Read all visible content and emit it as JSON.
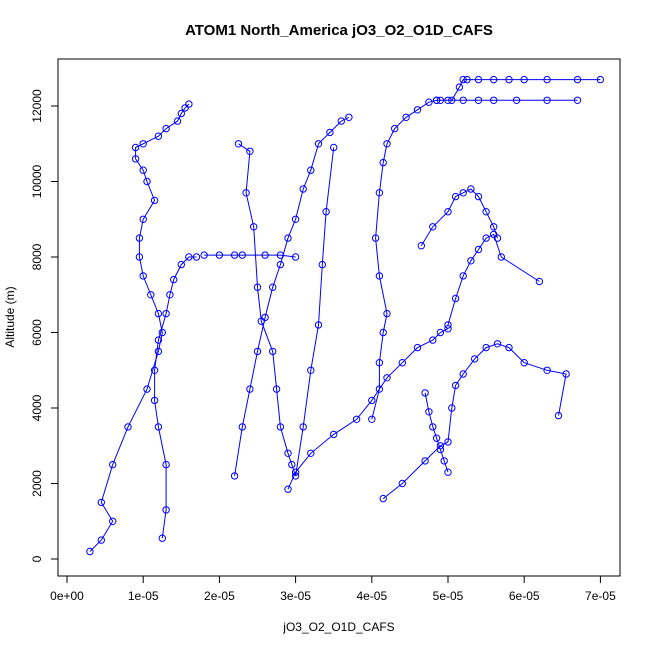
{
  "chart_data": {
    "type": "line",
    "title": "ATOM1 North_America jO3_O2_O1D_CAFS",
    "xlabel": "jO3_O2_O1D_CAFS",
    "ylabel": "Altitude (m)",
    "xlim": [
      0,
      7e-05
    ],
    "ylim": [
      0,
      12500
    ],
    "x_ticks": [
      0,
      1e-05,
      2e-05,
      3e-05,
      4e-05,
      5e-05,
      6e-05,
      7e-05
    ],
    "x_tick_labels": [
      "0e+00",
      "1e-05",
      "2e-05",
      "3e-05",
      "4e-05",
      "5e-05",
      "6e-05",
      "7e-05"
    ],
    "y_ticks": [
      0,
      2000,
      4000,
      6000,
      8000,
      10000,
      12000
    ],
    "y_tick_labels": [
      "0",
      "2000",
      "4000",
      "6000",
      "8000",
      "10000",
      "12000"
    ],
    "color": "#0000ff",
    "legend": "none",
    "grid": false,
    "series": [
      {
        "x": [
          3e-06,
          4.5e-06,
          6e-06,
          4.5e-06,
          6e-06,
          8e-06,
          1.05e-05,
          1.2e-05,
          1.25e-05,
          1.2e-05,
          1.1e-05,
          1e-05,
          9.5e-06,
          9.5e-06,
          1e-05,
          1.15e-05,
          1.05e-05,
          1e-05,
          9e-06,
          9e-06,
          1e-05,
          1.2e-05,
          1.3e-05,
          1.45e-05,
          1.5e-05,
          1.55e-05,
          1.6e-05
        ],
        "y": [
          200,
          500,
          1000,
          1500,
          2500,
          3500,
          4500,
          5500,
          6000,
          6500,
          7000,
          7500,
          8000,
          8500,
          9000,
          9500,
          10000,
          10300,
          10600,
          10900,
          11000,
          11200,
          11400,
          11600,
          11800,
          11950,
          12050
        ]
      },
      {
        "x": [
          1.25e-05,
          1.3e-05,
          1.3e-05,
          1.2e-05,
          1.15e-05,
          1.15e-05,
          1.2e-05,
          1.3e-05,
          1.35e-05,
          1.4e-05,
          1.5e-05,
          1.6e-05,
          1.7e-05
        ],
        "y": [
          550,
          1300,
          2500,
          3500,
          4200,
          5000,
          5800,
          6500,
          7000,
          7400,
          7800,
          8000,
          8000
        ]
      },
      {
        "x": [
          1.8e-05,
          2e-05,
          2.2e-05,
          2.3e-05,
          2.6e-05,
          2.8e-05,
          3e-05
        ],
        "y": [
          8050,
          8050,
          8050,
          8050,
          8050,
          8050,
          8000
        ]
      },
      {
        "x": [
          2.25e-05,
          2.4e-05,
          2.35e-05,
          2.45e-05,
          2.5e-05,
          2.55e-05,
          2.7e-05,
          2.75e-05,
          2.8e-05,
          2.9e-05,
          2.95e-05,
          3e-05,
          3.1e-05,
          3.2e-05,
          3.3e-05,
          3.35e-05,
          3.4e-05,
          3.5e-05
        ],
        "y": [
          11000,
          10800,
          9700,
          8800,
          7200,
          6300,
          5500,
          4500,
          3500,
          2800,
          2500,
          2200,
          3500,
          5000,
          6200,
          7800,
          9200,
          10900
        ]
      },
      {
        "x": [
          2.2e-05,
          2.3e-05,
          2.4e-05,
          2.5e-05,
          2.6e-05,
          2.7e-05,
          2.8e-05,
          2.9e-05,
          3e-05,
          3.1e-05,
          3.2e-05,
          3.3e-05,
          3.45e-05,
          3.6e-05,
          3.7e-05
        ],
        "y": [
          2200,
          3500,
          4500,
          5500,
          6400,
          7200,
          7800,
          8500,
          9000,
          9800,
          10300,
          11000,
          11300,
          11600,
          11700
        ]
      },
      {
        "x": [
          2.9e-05,
          3e-05,
          3.2e-05,
          3.5e-05,
          3.8e-05,
          4e-05,
          4.2e-05,
          4.4e-05,
          4.6e-05,
          4.8e-05,
          4.9e-05,
          5e-05
        ],
        "y": [
          1850,
          2300,
          2800,
          3300,
          3700,
          4200,
          4800,
          5200,
          5600,
          5800,
          6000,
          6100
        ]
      },
      {
        "x": [
          4e-05,
          4.1e-05,
          4.1e-05,
          4.15e-05,
          4.2e-05,
          4.1e-05,
          4.05e-05,
          4.1e-05,
          4.15e-05,
          4.2e-05,
          4.3e-05,
          4.45e-05,
          4.6e-05,
          4.75e-05,
          4.85e-05
        ],
        "y": [
          3700,
          4500,
          5200,
          6000,
          6500,
          7500,
          8500,
          9700,
          10500,
          11000,
          11400,
          11700,
          11900,
          12100,
          12150
        ]
      },
      {
        "x": [
          4.15e-05,
          4.4e-05,
          4.7e-05,
          4.9e-05,
          5e-05,
          5.05e-05,
          5.1e-05,
          5.2e-05,
          5.35e-05,
          5.5e-05,
          5.65e-05,
          5.8e-05,
          6e-05,
          6.3e-05,
          6.55e-05,
          6.45e-05
        ],
        "y": [
          1600,
          2000,
          2600,
          3000,
          3100,
          4000,
          4600,
          4900,
          5300,
          5600,
          5700,
          5600,
          5200,
          5000,
          4900,
          3800
        ]
      },
      {
        "x": [
          5e-05,
          5.1e-05,
          5.2e-05,
          5.3e-05,
          5.4e-05,
          5.5e-05,
          5.6e-05,
          5.7e-05,
          6.2e-05
        ],
        "y": [
          6200,
          6900,
          7500,
          7900,
          8200,
          8500,
          8600,
          8000,
          7350
        ]
      },
      {
        "x": [
          4.65e-05,
          4.8e-05,
          5e-05,
          5.1e-05,
          5.2e-05,
          5.3e-05,
          5.4e-05,
          5.5e-05,
          5.6e-05,
          5.65e-05
        ],
        "y": [
          8300,
          8800,
          9200,
          9600,
          9700,
          9800,
          9600,
          9200,
          8800,
          8500
        ]
      },
      {
        "x": [
          5.05e-05,
          5.15e-05,
          5.2e-05,
          5.25e-05,
          5.4e-05,
          5.6e-05,
          5.8e-05,
          6e-05,
          6.3e-05,
          6.7e-05,
          7e-05
        ],
        "y": [
          12150,
          12500,
          12700,
          12700,
          12700,
          12700,
          12700,
          12700,
          12700,
          12700,
          12700
        ]
      },
      {
        "x": [
          4.85e-05,
          4.9e-05,
          5e-05,
          5.2e-05,
          5.4e-05,
          5.6e-05,
          5.9e-05,
          6.3e-05,
          6.7e-05
        ],
        "y": [
          12150,
          12150,
          12150,
          12150,
          12150,
          12150,
          12150,
          12150,
          12150
        ]
      },
      {
        "x": [
          5e-05,
          4.95e-05,
          4.9e-05,
          4.85e-05,
          4.8e-05,
          4.75e-05,
          4.7e-05
        ],
        "y": [
          2300,
          2600,
          2900,
          3200,
          3500,
          3900,
          4400
        ]
      }
    ]
  }
}
